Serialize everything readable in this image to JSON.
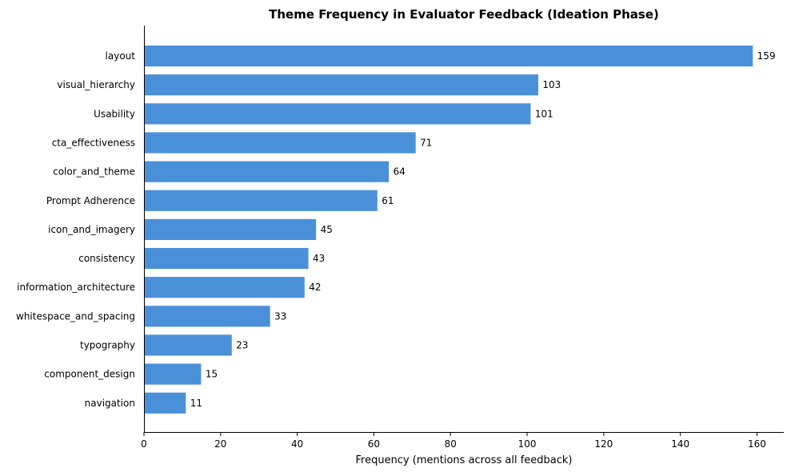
{
  "chart_data": {
    "type": "bar",
    "orientation": "horizontal",
    "title": "Theme Frequency in Evaluator Feedback (Ideation Phase)",
    "xlabel": "Frequency (mentions across all feedback)",
    "ylabel": "",
    "categories": [
      "layout",
      "visual_hierarchy",
      "Usability",
      "cta_effectiveness",
      "color_and_theme",
      "Prompt Adherence",
      "icon_and_imagery",
      "consistency",
      "information_architecture",
      "whitespace_and_spacing",
      "typography",
      "component_design",
      "navigation"
    ],
    "values": [
      159,
      103,
      101,
      71,
      64,
      61,
      45,
      43,
      42,
      33,
      23,
      15,
      11
    ],
    "xlim": [
      0,
      167
    ],
    "xticks": [
      0,
      20,
      40,
      60,
      80,
      100,
      120,
      140,
      160
    ],
    "bar_color": "#4a90d9",
    "grid": false,
    "legend": "none"
  }
}
